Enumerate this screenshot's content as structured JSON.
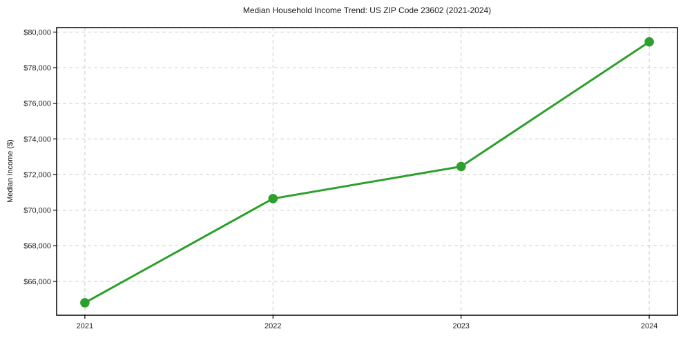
{
  "title": "Median Household Income Trend: US ZIP Code 23602 (2021-2024)",
  "chart_data": {
    "type": "line",
    "title": "Median Household Income Trend: US ZIP Code 23602 (2021-2024)",
    "xlabel": "",
    "ylabel": "Median Income ($)",
    "x": [
      2021,
      2022,
      2023,
      2024
    ],
    "x_tick_labels": [
      "2021",
      "2022",
      "2023",
      "2024"
    ],
    "series": [
      {
        "name": "Median Household Income",
        "values": [
          64800,
          70650,
          72450,
          79450
        ]
      }
    ],
    "y_ticks": [
      66000,
      68000,
      70000,
      72000,
      74000,
      76000,
      78000,
      80000
    ],
    "y_tick_labels": [
      "$66,000",
      "$68,000",
      "$70,000",
      "$72,000",
      "$74,000",
      "$76,000",
      "$78,000",
      "$80,000"
    ],
    "ylim": [
      64100,
      80250
    ],
    "x_margin_fraction": 0.05,
    "grid": true,
    "grid_style": "dashed",
    "legend": "none",
    "line_color": "#2ca02c",
    "marker": "circle",
    "marker_radius": 6.8,
    "line_width": 3,
    "grid_color": "#cbcbcb",
    "background_color": "#ffffff",
    "text_color": "#1a1a1a"
  }
}
